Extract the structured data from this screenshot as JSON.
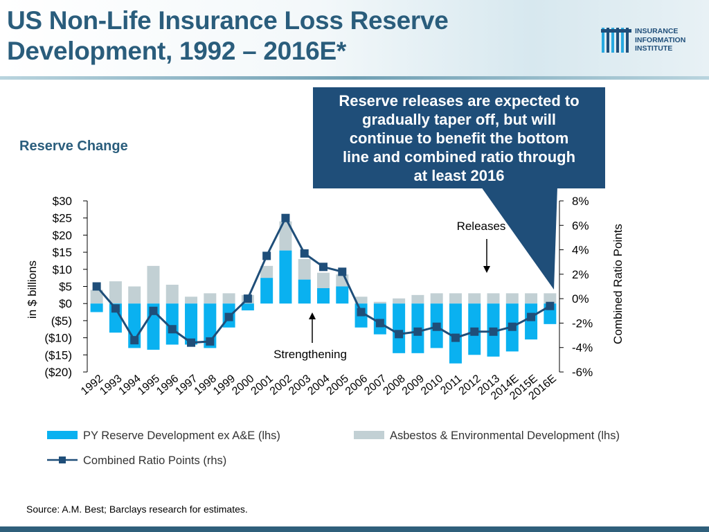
{
  "title_line1": "US Non-Life Insurance Loss Reserve",
  "title_line2": "Development, 1992 – 2016E*",
  "logo": {
    "line1": "INSURANCE",
    "line2": "INFORMATION",
    "line3": "INSTITUTE",
    "color": "#1f4e79",
    "accent": "#27a9e1"
  },
  "reserve_label": "Reserve Change",
  "callout": {
    "line1": "Reserve releases are expected to",
    "line2": "gradually taper off, but will",
    "line3": "continue to benefit the bottom",
    "line4": "line and combined ratio through",
    "line5": "at least 2016"
  },
  "source": "Source:  A.M. Best; Barclays research for estimates.",
  "colors": {
    "py_bar": "#0ab1f0",
    "ae_bar": "#c2d0d4",
    "line": "#1f4e79",
    "title": "#2a5d7c"
  },
  "chart_data": {
    "type": "bar",
    "categories": [
      "1992",
      "1993",
      "1994",
      "1995",
      "1996",
      "1997",
      "1998",
      "1999",
      "2000",
      "2001",
      "2002",
      "2003",
      "2004",
      "2005",
      "2006",
      "2007",
      "2008",
      "2009",
      "2010",
      "2011",
      "2012",
      "2013",
      "2014E",
      "2015E",
      "2016E"
    ],
    "series": [
      {
        "name": "PY Reserve Development ex A&E (lhs)",
        "axis": "left",
        "kind": "bar",
        "values": [
          -2.5,
          -8.5,
          -13,
          -13.5,
          -12,
          -12,
          -13,
          -7,
          -2,
          7.5,
          15.5,
          7,
          4.5,
          5,
          -7,
          -9,
          -14.5,
          -14.5,
          -13,
          -17.5,
          -15,
          -15.5,
          -14,
          -10.5,
          -6
        ]
      },
      {
        "name": "Asbestos & Environmental Development (lhs)",
        "axis": "left",
        "kind": "bar",
        "values": [
          4,
          6.5,
          5,
          11,
          5.5,
          2,
          3,
          3,
          2.5,
          3.5,
          8.5,
          6,
          4.5,
          3.5,
          2,
          0.5,
          1.5,
          2.5,
          3,
          3,
          3,
          3,
          3,
          3,
          3
        ]
      },
      {
        "name": "Combined Ratio Points (rhs)",
        "axis": "right",
        "kind": "line",
        "values": [
          1,
          -0.8,
          -3.4,
          -1,
          -2.5,
          -3.6,
          -3.5,
          -1.5,
          0,
          3.5,
          6.6,
          3.7,
          2.6,
          2.2,
          -1.1,
          -2,
          -2.9,
          -2.7,
          -2.3,
          -3.2,
          -2.7,
          -2.7,
          -2.3,
          -1.5,
          -0.6
        ]
      }
    ],
    "left_axis": {
      "label": "in $ billions",
      "min": -20,
      "max": 30,
      "ticks": [
        "($20)",
        "($15)",
        "($10)",
        "($5)",
        "$0",
        "$5",
        "$10",
        "$15",
        "$20",
        "$25",
        "$30"
      ]
    },
    "right_axis": {
      "label": "Combined Ratio Points",
      "min": -6,
      "max": 8,
      "ticks": [
        "-6%",
        "-4%",
        "-2%",
        "0%",
        "2%",
        "4%",
        "6%",
        "8%"
      ]
    },
    "annotations": {
      "releases": "Releases",
      "strengthening": "Strengthening"
    },
    "legend": {
      "py": "PY Reserve Development ex A&E (lhs)",
      "ae": "Asbestos & Environmental Development (lhs)",
      "line": "Combined Ratio Points (rhs)"
    }
  }
}
